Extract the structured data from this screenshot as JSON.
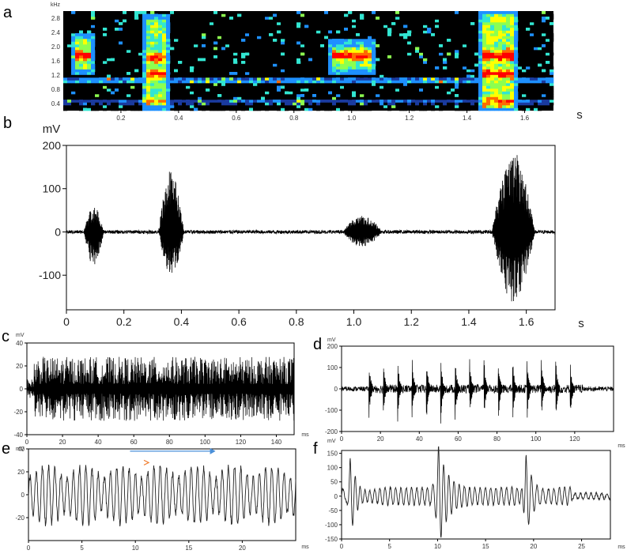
{
  "panel_labels": {
    "a": "a",
    "b": "b",
    "c": "c",
    "d": "d",
    "e": "e",
    "f": "f"
  },
  "chart_data": [
    {
      "id": "a",
      "type": "heatmap",
      "y_unit": "kHz",
      "x_unit": "s",
      "x_ticks": [
        0.2,
        0.4,
        0.6,
        0.8,
        1.0,
        1.2,
        1.4,
        1.6
      ],
      "x_tick_labels": [
        "0.2",
        "0.4",
        "0.6",
        "0.8",
        "1.0",
        "1.2",
        "1.4",
        "1.6"
      ],
      "y_ticks": [
        0.4,
        0.8,
        1.2,
        1.6,
        2.0,
        2.4,
        2.8
      ],
      "y_tick_labels": [
        "0.4",
        "0.8",
        "1.2",
        "1.6",
        "2.0",
        "2.4",
        "2.8"
      ],
      "xlim": [
        0,
        1.7
      ],
      "ylim": [
        0.2,
        3.0
      ],
      "background": "#000000",
      "colormap": [
        "#000000",
        "#1a3a9e",
        "#1e90ff",
        "#32e6d2",
        "#8cff50",
        "#ffff00",
        "#ff6a00",
        "#ff0000"
      ],
      "bursts": [
        {
          "t0": 0.04,
          "t1": 0.1,
          "f0": 1.4,
          "f1": 2.2,
          "peak": 1.75,
          "intensity": 0.95
        },
        {
          "t0": 0.29,
          "t1": 0.36,
          "f0": 0.35,
          "f1": 2.75,
          "peak": 1.7,
          "intensity": 0.9
        },
        {
          "t0": 0.93,
          "t1": 1.07,
          "f0": 1.4,
          "f1": 2.0,
          "peak": 1.75,
          "intensity": 0.9
        },
        {
          "t0": 1.45,
          "t1": 1.56,
          "f0": 0.3,
          "f1": 2.95,
          "peak": 1.75,
          "intensity": 1.0
        }
      ],
      "bands": [
        {
          "f": 1.05,
          "intensity": 0.55
        },
        {
          "f": 0.45,
          "intensity": 0.25
        }
      ]
    },
    {
      "id": "b",
      "type": "line",
      "ylabel": "mV",
      "xlabel": "s",
      "xlim": [
        0,
        1.7
      ],
      "ylim": [
        -180,
        200
      ],
      "x_ticks": [
        0,
        0.2,
        0.4,
        0.6,
        0.8,
        1.0,
        1.2,
        1.4,
        1.6
      ],
      "x_tick_labels": [
        "0",
        "0.2",
        "0.4",
        "0.6",
        "0.8",
        "1.0",
        "1.2",
        "1.4",
        "1.6"
      ],
      "y_ticks": [
        -100,
        0,
        100,
        200
      ],
      "y_tick_labels": [
        "-100",
        "0",
        "100",
        "200"
      ],
      "noise_amplitude": 4,
      "bursts": [
        {
          "t0": 0.06,
          "t1": 0.13,
          "amp_pos": 60,
          "amp_neg": -80
        },
        {
          "t0": 0.32,
          "t1": 0.41,
          "amp_pos": 145,
          "amp_neg": -100
        },
        {
          "t0": 0.96,
          "t1": 1.1,
          "amp_pos": 38,
          "amp_neg": -35
        },
        {
          "t0": 1.48,
          "t1": 1.63,
          "amp_pos": 185,
          "amp_neg": -165
        }
      ]
    },
    {
      "id": "c",
      "type": "line",
      "ylabel": "mV",
      "xlabel": "ms",
      "xlim": [
        0,
        150
      ],
      "ylim": [
        -40,
        40
      ],
      "x_ticks": [
        0,
        20,
        40,
        60,
        80,
        100,
        120,
        140
      ],
      "x_tick_labels": [
        "0",
        "20",
        "40",
        "60",
        "80",
        "100",
        "120",
        "140"
      ],
      "y_ticks": [
        -40,
        -20,
        0,
        20,
        40
      ],
      "y_tick_labels": [
        "-40",
        "-20",
        "0",
        "20",
        "40"
      ],
      "amplitude": 28
    },
    {
      "id": "d",
      "type": "line",
      "ylabel": "mV",
      "xlabel": "ms",
      "xlim": [
        0,
        140
      ],
      "ylim": [
        -200,
        200
      ],
      "x_ticks": [
        0,
        20,
        40,
        60,
        80,
        100,
        120
      ],
      "x_tick_labels": [
        "0",
        "20",
        "40",
        "60",
        "80",
        "100",
        "120"
      ],
      "y_ticks": [
        -200,
        -100,
        0,
        100,
        200
      ],
      "y_tick_labels": [
        "-200",
        "-100",
        "0",
        "100",
        "200"
      ],
      "pulse_period": 7.4,
      "pulse_amplitude": 170
    },
    {
      "id": "e",
      "type": "line",
      "ylabel": "mV",
      "xlabel": "ms",
      "xlim": [
        0,
        25
      ],
      "ylim": [
        -40,
        40
      ],
      "x_ticks": [
        0,
        5,
        10,
        15,
        20
      ],
      "x_tick_labels": [
        "0",
        "5",
        "10",
        "15",
        "20"
      ],
      "y_ticks": [
        -20,
        0,
        20,
        40
      ],
      "y_tick_labels": [
        "-20",
        "0",
        "20",
        "40"
      ],
      "oscillation_period": 0.58,
      "amplitude": 25,
      "arrow": {
        "x0": 9.5,
        "x1": 17.5,
        "y": 38,
        "color": "#4a8fd8"
      },
      "marker": {
        "x": 10.8,
        "y": 28,
        "color": "#f07a2a"
      }
    },
    {
      "id": "f",
      "type": "line",
      "ylabel": "mV",
      "xlabel": "ms",
      "xlim": [
        0,
        28
      ],
      "ylim": [
        -150,
        160
      ],
      "x_ticks": [
        0,
        5,
        10,
        15,
        20,
        25
      ],
      "x_tick_labels": [
        "0",
        "5",
        "10",
        "15",
        "20",
        "25"
      ],
      "y_ticks": [
        -150,
        -100,
        -50,
        0,
        50,
        100,
        150
      ],
      "y_tick_labels": [
        "-150",
        "-100",
        "-50",
        "0",
        "50",
        "100",
        "150"
      ],
      "pulse_times": [
        0.9,
        10.1,
        19.2
      ],
      "pulse_amplitude": 160,
      "oscillation_period": 0.55
    }
  ]
}
